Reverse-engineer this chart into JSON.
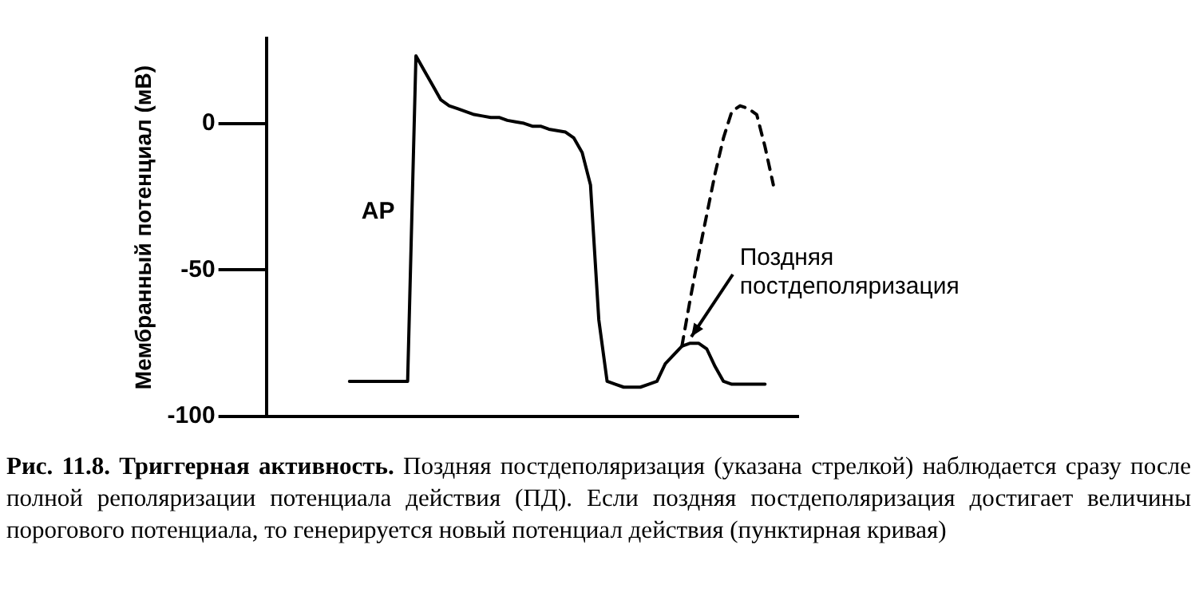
{
  "chart_data": {
    "type": "line",
    "ylabel": "Мембранный потенциал (мВ)",
    "categories": [
      null,
      null,
      null,
      null,
      null,
      null,
      null,
      null,
      null,
      null,
      null,
      null,
      null,
      null,
      null,
      null,
      null,
      null,
      null,
      null,
      null,
      null,
      null,
      null,
      null,
      null,
      null,
      null,
      null,
      null,
      null,
      null,
      null,
      null,
      null,
      null,
      null,
      null,
      null,
      null,
      null,
      null,
      null,
      null,
      null,
      null,
      null,
      null,
      null,
      null,
      null,
      null,
      null,
      null,
      null,
      null,
      null,
      null,
      null,
      null,
      null,
      null,
      null,
      null,
      null
    ],
    "ylim": [
      -100,
      29
    ],
    "yticks": [
      0,
      -50,
      -100
    ],
    "tick_labels": "y",
    "grid": false,
    "legend": false,
    "marker": "none",
    "series": [
      {
        "color": "#000000",
        "line_style": "solid",
        "values": [
          null,
          null,
          null,
          null,
          null,
          null,
          null,
          null,
          null,
          null,
          -88,
          -88,
          -88,
          -88,
          -88,
          -88,
          -88,
          -88,
          23,
          18,
          13,
          8,
          6,
          5,
          4,
          3,
          2.5,
          2,
          2,
          1,
          0.5,
          0,
          -1,
          -1,
          -2,
          -2.5,
          -3,
          -5,
          -10,
          -21,
          -67,
          -88,
          -89,
          -90,
          -90,
          -90,
          -89,
          -88,
          -82,
          -79,
          -76,
          -75,
          -75,
          -77,
          -83,
          -88,
          -89,
          -89,
          -89,
          -89,
          -89,
          null,
          null,
          null,
          null
        ]
      },
      {
        "color": "#000000",
        "line_style": "dashed",
        "values": [
          null,
          null,
          null,
          null,
          null,
          null,
          null,
          null,
          null,
          null,
          null,
          null,
          null,
          null,
          null,
          null,
          null,
          null,
          null,
          null,
          null,
          null,
          null,
          null,
          null,
          null,
          null,
          null,
          null,
          null,
          null,
          null,
          null,
          null,
          null,
          null,
          null,
          null,
          null,
          null,
          null,
          null,
          null,
          null,
          null,
          null,
          null,
          null,
          null,
          null,
          -76,
          -60,
          -45,
          -31,
          -17,
          -5,
          4,
          6,
          5,
          3,
          -8,
          -21,
          null,
          null,
          null
        ]
      }
    ],
    "annotations": [
      "AP",
      "Поздняя\nпостдеполяризация",
      "Рис. 11.8. Триггерная активность.",
      "Поздняя постдеполяризация (указана стрелкой) наблюдается сразу после полной реполяризации потенциала действия (ПД). Если поздняя постдеполяризация достигает величины порогового потенциала, то генерируется новый потенциал действия (пунктирная кривая)"
    ]
  }
}
